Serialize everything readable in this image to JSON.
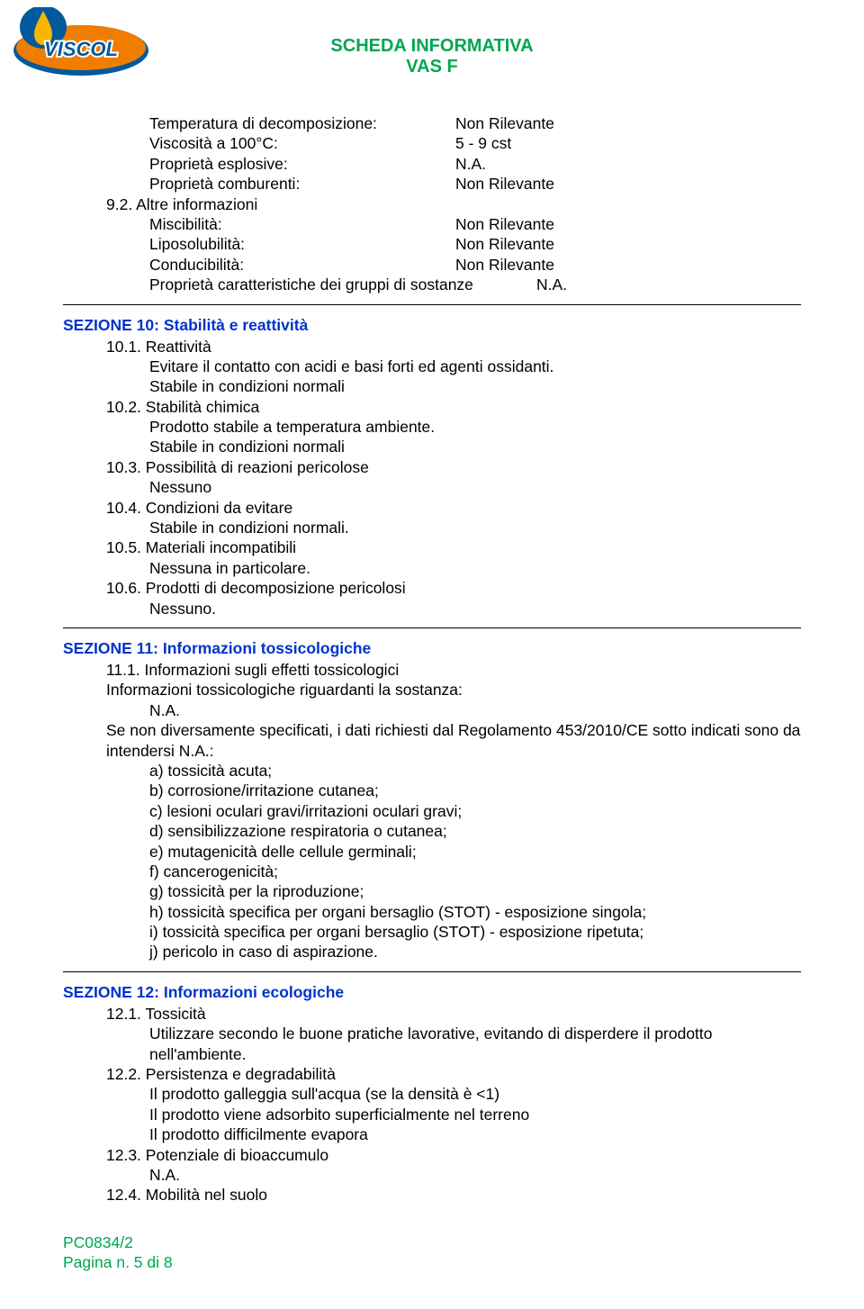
{
  "header": {
    "title": "SCHEDA INFORMATIVA",
    "subtitle": "VAS F"
  },
  "logo": {
    "text": "VISCOL",
    "colors": {
      "yellow": "#f9b500",
      "blue": "#005a9c",
      "orange": "#f07d00"
    }
  },
  "sec9_cont": {
    "rows": [
      {
        "label": "Temperatura di decomposizione:",
        "value": "Non Rilevante"
      },
      {
        "label": "Viscosità a 100°C:",
        "value": "5 - 9 cst"
      },
      {
        "label": "Proprietà esplosive:",
        "value": "N.A."
      },
      {
        "label": "Proprietà comburenti:",
        "value": "Non Rilevante"
      }
    ],
    "sub92": "9.2. Altre informazioni",
    "rows2": [
      {
        "label": "Miscibilità:",
        "value": "Non Rilevante"
      },
      {
        "label": "Liposolubilità:",
        "value": "Non Rilevante"
      },
      {
        "label": "Conducibilità:",
        "value": "Non Rilevante"
      },
      {
        "label": "Proprietà caratteristiche dei gruppi di sostanze",
        "value": "N.A."
      }
    ]
  },
  "sec10": {
    "title": "SEZIONE 10: Stabilità e reattività",
    "items": [
      {
        "h": "10.1. Reattività",
        "lines": [
          "Evitare il contatto con acidi e basi forti ed agenti ossidanti.",
          "Stabile in condizioni normali"
        ]
      },
      {
        "h": "10.2. Stabilità chimica",
        "lines": [
          "Prodotto stabile a temperatura ambiente.",
          "Stabile in condizioni normali"
        ]
      },
      {
        "h": "10.3. Possibilità di reazioni pericolose",
        "lines": [
          "Nessuno"
        ]
      },
      {
        "h": "10.4. Condizioni da evitare",
        "lines": [
          "Stabile in condizioni normali."
        ]
      },
      {
        "h": "10.5. Materiali incompatibili",
        "lines": [
          "Nessuna in particolare."
        ]
      },
      {
        "h": "10.6. Prodotti di decomposizione pericolosi",
        "lines": [
          "Nessuno."
        ]
      }
    ]
  },
  "sec11": {
    "title": "SEZIONE 11: Informazioni tossicologiche",
    "sub": "11.1. Informazioni sugli effetti tossicologici",
    "line1": "Informazioni tossicologiche riguardanti la sostanza:",
    "na": "N.A.",
    "para": "Se non diversamente specificati, i dati richiesti dal Regolamento 453/2010/CE sotto indicati sono da intendersi N.A.:",
    "list": [
      "a) tossicità acuta;",
      "b) corrosione/irritazione cutanea;",
      "c) lesioni oculari gravi/irritazioni oculari gravi;",
      "d) sensibilizzazione respiratoria o cutanea;",
      "e) mutagenicità delle cellule germinali;",
      "f) cancerogenicità;",
      "g) tossicità per la riproduzione;",
      "h) tossicità specifica per organi bersaglio (STOT) - esposizione singola;",
      "i) tossicità specifica per organi bersaglio (STOT) - esposizione ripetuta;",
      "j) pericolo in caso di aspirazione."
    ]
  },
  "sec12": {
    "title": "SEZIONE 12: Informazioni ecologiche",
    "items": [
      {
        "h": "12.1. Tossicità",
        "lines": [
          "Utilizzare secondo le buone pratiche lavorative, evitando di disperdere il prodotto nell'ambiente."
        ]
      },
      {
        "h": "12.2. Persistenza e degradabilità",
        "lines": [
          "Il prodotto galleggia sull'acqua (se la densità è <1)",
          "Il prodotto viene adsorbito superficialmente nel terreno",
          "Il prodotto difficilmente evapora"
        ]
      },
      {
        "h": "12.3. Potenziale di bioaccumulo",
        "lines": [
          "N.A."
        ]
      },
      {
        "h": "12.4. Mobilità nel suolo",
        "lines": []
      }
    ]
  },
  "footer": {
    "code": "PC0834/2",
    "page": "Pagina n. 5 di 8"
  }
}
